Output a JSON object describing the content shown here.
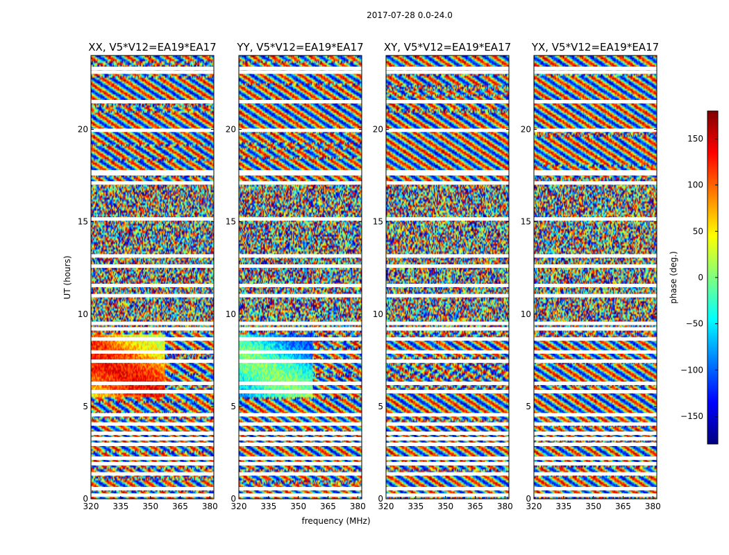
{
  "figure": {
    "suptitle": "2017-07-28 0.0-24.0"
  },
  "chart_data": {
    "type": "heatmap",
    "description_of_values": "visibility phase (deg.) vs frequency and UT",
    "panels": [
      {
        "title": "XX, V5*V12=EA19*EA17",
        "show_ylabel": true,
        "show_xlabel": false
      },
      {
        "title": "YY, V5*V12=EA19*EA17",
        "show_ylabel": false,
        "show_xlabel": true
      },
      {
        "title": "XY, V5*V12=EA19*EA17",
        "show_ylabel": false,
        "show_xlabel": false
      },
      {
        "title": "YX, V5*V12=EA19*EA17",
        "show_ylabel": false,
        "show_xlabel": false
      }
    ],
    "xlabel": "frequency (MHz)",
    "ylabel": "UT (hours)",
    "xlim": [
      320,
      382
    ],
    "ylim": [
      0,
      24
    ],
    "xticks": [
      320,
      335,
      350,
      365,
      380
    ],
    "yticks": [
      0,
      5,
      10,
      15,
      20
    ],
    "colorbar": {
      "label": "phase (deg.)",
      "range": [
        -180,
        180
      ],
      "ticks": [
        -150,
        -100,
        -50,
        0,
        50,
        100,
        150
      ],
      "tick_labels": [
        "−150",
        "−100",
        "−50",
        "0",
        "50",
        "100",
        "150"
      ],
      "colormap": [
        "#00007f",
        "#0000ff",
        "#007fff",
        "#00ffff",
        "#7fff7f",
        "#ffff00",
        "#ff7f00",
        "#ff0000",
        "#7f0000"
      ]
    },
    "flagged_ut_hours": [
      0.2,
      0.55,
      1.35,
      1.9,
      2.2,
      2.95,
      3.25,
      3.55,
      4.05,
      4.55,
      5.8,
      6.25,
      7.45,
      7.95,
      8.65,
      9.2,
      9.5,
      11.0,
      11.55,
      12.6,
      13.15,
      15.15,
      17.1,
      17.6,
      17.7,
      19.95,
      21.5,
      23.1,
      23.3
    ]
  }
}
